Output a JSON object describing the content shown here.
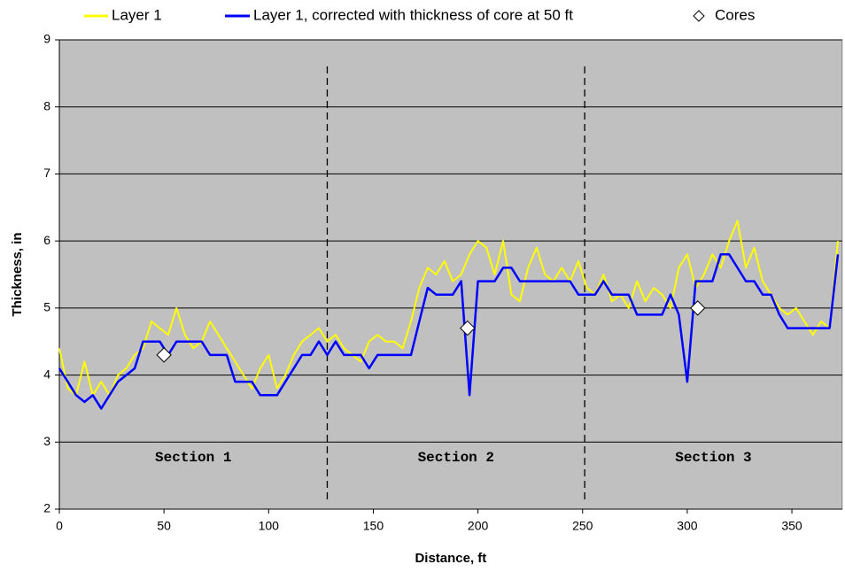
{
  "chart_data": {
    "type": "line",
    "xlabel": "Distance, ft",
    "ylabel": "Thickness, in",
    "xlim": [
      0,
      374
    ],
    "ylim": [
      2,
      9
    ],
    "xticks": [
      0,
      50,
      100,
      150,
      200,
      250,
      300,
      350
    ],
    "yticks": [
      2,
      3,
      4,
      5,
      6,
      7,
      8,
      9
    ],
    "grid": true,
    "background": "#c0c0c0",
    "x": [
      0,
      4,
      8,
      12,
      16,
      20,
      24,
      28,
      32,
      36,
      40,
      44,
      48,
      52,
      56,
      60,
      64,
      68,
      72,
      76,
      80,
      84,
      88,
      92,
      96,
      100,
      104,
      108,
      112,
      116,
      120,
      124,
      128,
      132,
      136,
      140,
      144,
      148,
      152,
      156,
      160,
      164,
      168,
      172,
      176,
      180,
      184,
      188,
      192,
      196,
      200,
      204,
      208,
      212,
      216,
      220,
      224,
      228,
      232,
      236,
      240,
      244,
      248,
      252,
      256,
      260,
      264,
      268,
      272,
      276,
      280,
      284,
      288,
      292,
      296,
      300,
      304,
      308,
      312,
      316,
      320,
      324,
      328,
      332,
      336,
      340,
      344,
      348,
      352,
      356,
      360,
      364,
      368,
      372
    ],
    "series": [
      {
        "name": "Layer 1",
        "color": "#ffff00",
        "values": [
          4.4,
          3.8,
          3.7,
          4.2,
          3.7,
          3.9,
          3.7,
          4.0,
          4.1,
          4.3,
          4.4,
          4.8,
          4.7,
          4.6,
          5.0,
          4.6,
          4.4,
          4.5,
          4.8,
          4.6,
          4.4,
          4.2,
          4.0,
          3.8,
          4.1,
          4.3,
          3.8,
          4.0,
          4.3,
          4.5,
          4.6,
          4.7,
          4.5,
          4.6,
          4.4,
          4.3,
          4.2,
          4.5,
          4.6,
          4.5,
          4.5,
          4.4,
          4.8,
          5.3,
          5.6,
          5.5,
          5.7,
          5.4,
          5.5,
          5.8,
          6.0,
          5.9,
          5.5,
          6.0,
          5.2,
          5.1,
          5.6,
          5.9,
          5.5,
          5.4,
          5.6,
          5.4,
          5.7,
          5.3,
          5.2,
          5.5,
          5.1,
          5.2,
          5.0,
          5.4,
          5.1,
          5.3,
          5.2,
          5.0,
          5.6,
          5.8,
          5.3,
          5.5,
          5.8,
          5.6,
          6.0,
          6.3,
          5.6,
          5.9,
          5.4,
          5.2,
          5.0,
          4.9,
          5.0,
          4.8,
          4.6,
          4.8,
          4.7,
          6.0
        ]
      },
      {
        "name": "Layer 1, corrected with thickness of core at 50 ft",
        "color": "#0000ff",
        "values": [
          4.1,
          3.9,
          3.7,
          3.6,
          3.7,
          3.5,
          3.7,
          3.9,
          4.0,
          4.1,
          4.5,
          4.5,
          4.5,
          4.3,
          4.5,
          4.5,
          4.5,
          4.5,
          4.3,
          4.3,
          4.3,
          3.9,
          3.9,
          3.9,
          3.7,
          3.7,
          3.7,
          3.9,
          4.1,
          4.3,
          4.3,
          4.5,
          4.3,
          4.5,
          4.3,
          4.3,
          4.3,
          4.1,
          4.3,
          4.3,
          4.3,
          4.3,
          4.3,
          4.8,
          5.3,
          5.2,
          5.2,
          5.2,
          5.4,
          3.7,
          5.4,
          5.4,
          5.4,
          5.6,
          5.6,
          5.4,
          5.4,
          5.4,
          5.4,
          5.4,
          5.4,
          5.4,
          5.2,
          5.2,
          5.2,
          5.4,
          5.2,
          5.2,
          5.2,
          4.9,
          4.9,
          4.9,
          4.9,
          5.2,
          4.9,
          3.9,
          5.4,
          5.4,
          5.4,
          5.8,
          5.8,
          5.6,
          5.4,
          5.4,
          5.2,
          5.2,
          4.9,
          4.7,
          4.7,
          4.7,
          4.7,
          4.7,
          4.7,
          5.8
        ]
      }
    ],
    "cores": {
      "name": "Cores",
      "x": [
        50,
        195,
        305
      ],
      "values": [
        4.3,
        4.7,
        5.0
      ]
    },
    "dividers": [
      128,
      251
    ],
    "sections": [
      "Section 1",
      "Section 2",
      "Section 3"
    ]
  }
}
